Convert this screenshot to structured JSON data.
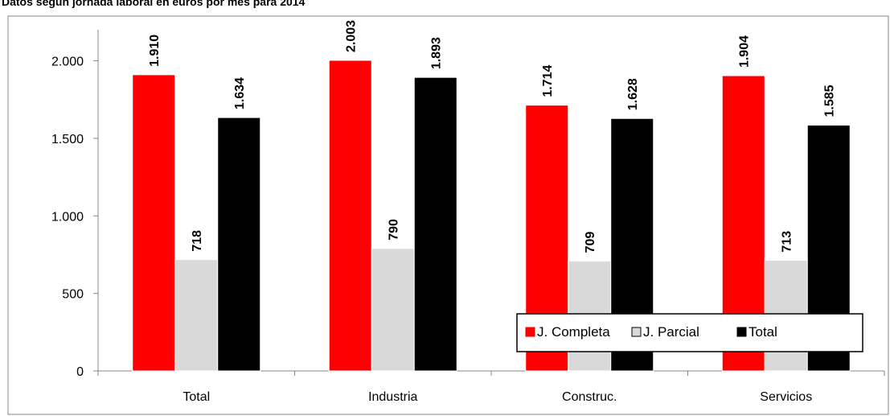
{
  "chart_data": {
    "type": "bar",
    "title": "Datos según jornada laboral en euros por mes para 2014",
    "categories": [
      "Total",
      "Industria",
      "Construc.",
      "Servicios"
    ],
    "series": [
      {
        "name": "J. Completa",
        "color": "#ff0000",
        "values": [
          1910,
          2003,
          1714,
          1904
        ],
        "labels": [
          "1.910",
          "2.003",
          "1.714",
          "1.904"
        ]
      },
      {
        "name": "J. Parcial",
        "color": "#d9d9d9",
        "values": [
          718,
          790,
          709,
          713
        ],
        "labels": [
          "718",
          "790",
          "709",
          "713"
        ]
      },
      {
        "name": "Total",
        "color": "#000000",
        "values": [
          1634,
          1893,
          1628,
          1585
        ],
        "labels": [
          "1.634",
          "1.893",
          "1.628",
          "1.585"
        ]
      }
    ],
    "ylim": [
      0,
      2200
    ],
    "yticks": [
      0,
      500,
      1000,
      1500,
      2000
    ],
    "ytick_labels": [
      "0",
      "500",
      "1.000",
      "1.500",
      "2.000"
    ],
    "xlabel": "",
    "ylabel": "",
    "grid": false,
    "legend_position": "bottom-right"
  }
}
